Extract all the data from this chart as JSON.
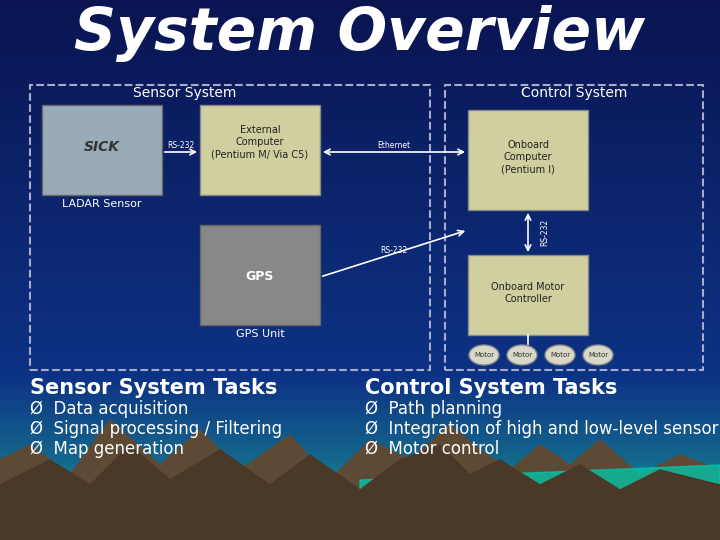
{
  "title": "System Overview",
  "title_fontsize": 42,
  "title_color": "#FFFFFF",
  "sensor_system_label": "Sensor System",
  "control_system_label": "Control System",
  "ladar_label": "LADAR Sensor",
  "external_computer_label": "External\nComputer\n(Pentium M/ Via C5)",
  "gps_label": "GPS Unit",
  "onboard_computer_label": "Onboard\nComputer\n(Pentium I)",
  "motor_controller_label": "Onboard Motor\nController",
  "rs232_label1": "RS-232",
  "ethernet_label": "Ethernet",
  "rs232_label2": "RS-232",
  "rs232_label3": "RS-232",
  "motor_labels": [
    "Motor",
    "Motor",
    "Motor",
    "Motor"
  ],
  "sensor_tasks_title": "Sensor System Tasks",
  "sensor_tasks": [
    "Ø  Data acquisition",
    "Ø  Signal processing / Filtering",
    "Ø  Map generation"
  ],
  "control_tasks_title": "Control System Tasks",
  "control_tasks": [
    "Ø  Path planning",
    "Ø  Integration of high and low-level sensor data",
    "Ø  Motor control"
  ],
  "tasks_title_fontsize": 15,
  "tasks_text_fontsize": 12,
  "box_facecolor": "#c8c870",
  "dashed_border_color": "#aaaacc",
  "text_white": "#FFFFFF"
}
